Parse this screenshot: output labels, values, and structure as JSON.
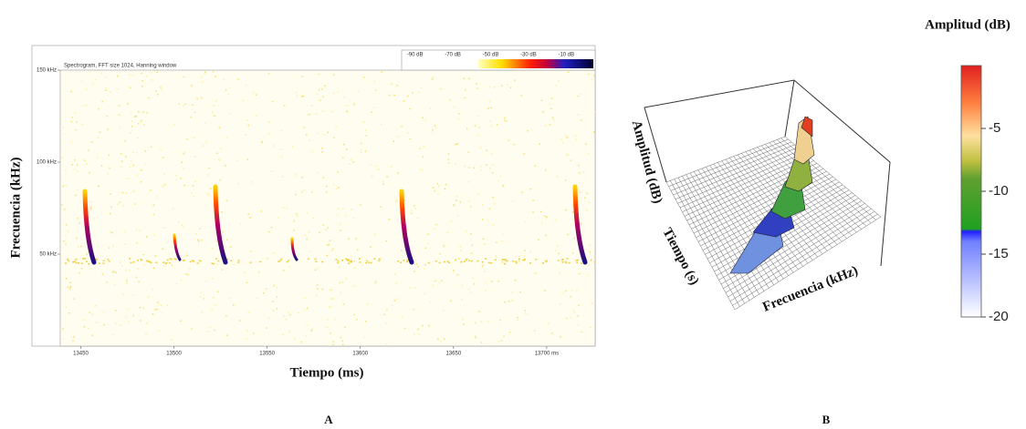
{
  "chart_data": [
    {
      "type": "spectrogram",
      "title": "Spectrogram, FFT size 1024, Hanning window",
      "x_label": "Tiempo (ms)",
      "y_label": "Frecuencia (kHz)",
      "xlim": [
        13439,
        13726
      ],
      "xticks": [
        13450,
        13500,
        13550,
        13600,
        13650,
        {
          "value": 13700,
          "label": "13700 ms"
        }
      ],
      "ylim": [
        0,
        150
      ],
      "yticks": [
        {
          "value": 50,
          "label": "50 kHz"
        },
        {
          "value": 100,
          "label": "100 kHz"
        },
        {
          "value": 150,
          "label": "150 kHz"
        }
      ],
      "clim": [
        -100,
        0
      ],
      "cticks": [
        {
          "value": -90,
          "label": "-90 dB"
        },
        {
          "value": -70,
          "label": "-70 dB"
        },
        {
          "value": -50,
          "label": "-50 dB"
        },
        {
          "value": -30,
          "label": "-30 dB"
        },
        {
          "value": -10,
          "label": "-10 dB"
        }
      ],
      "panel_label": "A"
    },
    {
      "type": "surface3d",
      "x_label": "Frecuencia (kHz)",
      "y_label": "Tiempo (s)",
      "z_label": "Amplitud (dB)",
      "colorbar_title": "Amplitud (dB)",
      "clim": [
        -20,
        0
      ],
      "cticks": [
        -20,
        -15,
        -10,
        -5
      ],
      "panel_label": "B"
    }
  ]
}
